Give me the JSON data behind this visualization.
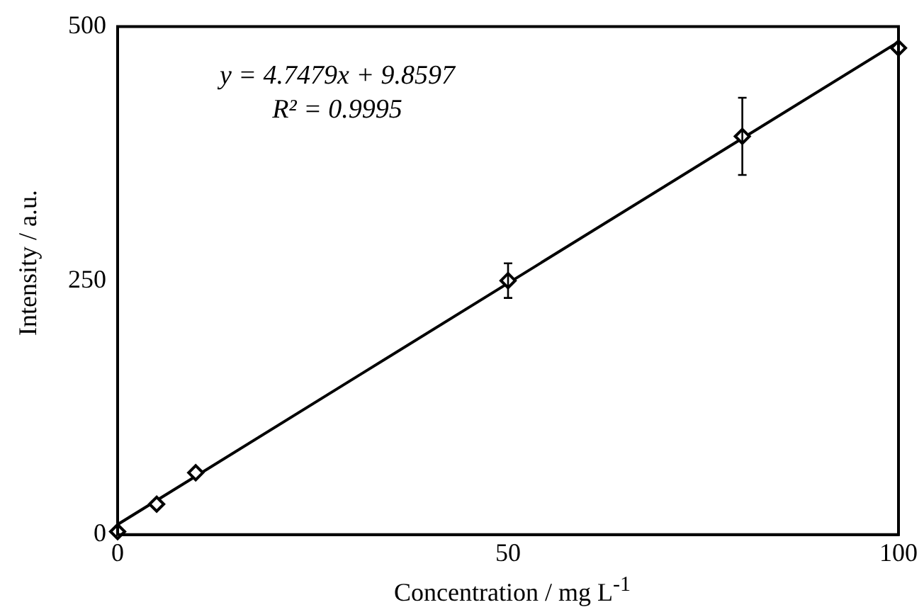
{
  "chart_data": {
    "type": "scatter",
    "xlabel": "Concentration / mg L$^{-1}$",
    "ylabel": "Intensity / a.u.",
    "annotations": [
      "y = 4.7479x + 9.8597",
      "R² = 0.9995"
    ],
    "xlim": [
      0,
      100
    ],
    "xticks": [
      0,
      50,
      100
    ],
    "ylim": [
      0,
      500
    ],
    "yticks": [
      0,
      250,
      500
    ],
    "grid": false,
    "legend": false,
    "marker": "diamond",
    "series": [
      {
        "color": "#000000",
        "x": [
          0,
          5,
          10,
          50,
          80,
          100
        ],
        "values": [
          3,
          30,
          61,
          250,
          392,
          479
        ],
        "errors": [
          null,
          null,
          null,
          17,
          38,
          null
        ]
      },
      {
        "type": "line",
        "color": "#000000",
        "x": [
          0,
          100
        ],
        "values": [
          10,
          485
        ],
        "marker": "none",
        "line_style": "solid"
      }
    ]
  }
}
